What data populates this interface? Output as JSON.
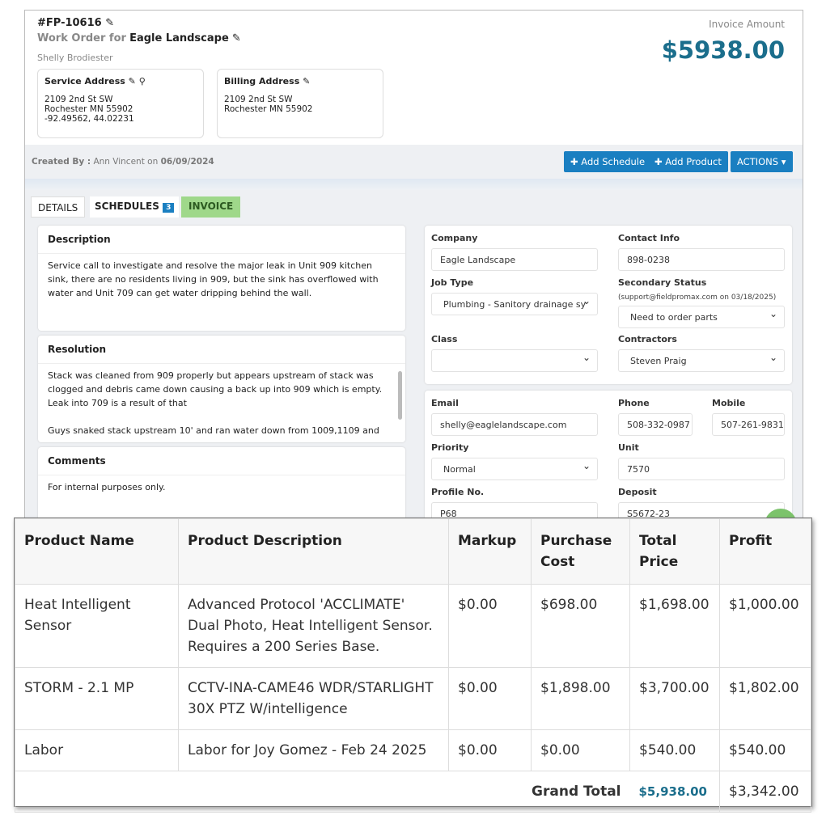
{
  "header": {
    "order_id": "#FP-10616",
    "title_prefix": "Work Order for",
    "customer": "Eagle Landscape",
    "contact": "Shelly Brodiester",
    "invoice_label": "Invoice Amount",
    "invoice_amount": "$5938.00"
  },
  "service_address": {
    "title": "Service Address",
    "line1": "2109 2nd St SW",
    "line2": "Rochester MN 55902",
    "coords": "-92.49562, 44.02231"
  },
  "billing_address": {
    "title": "Billing Address",
    "line1": "2109 2nd St SW",
    "line2": "Rochester MN 55902"
  },
  "created": {
    "label": "Created By :",
    "name": "Ann Vincent",
    "on": "on",
    "date": "06/09/2024"
  },
  "toolbar": {
    "add_schedule": "✚ Add Schedule",
    "add_product": "✚ Add Product",
    "actions": "ACTIONS ▾"
  },
  "tabs": [
    {
      "label": "DETAILS"
    },
    {
      "label": "SCHEDULES",
      "badge": "3"
    },
    {
      "label": "INVOICE"
    }
  ],
  "description": {
    "title": "Description",
    "text": "Service call to investigate and resolve the major leak in Unit 909 kitchen sink, there are no residents living in 909, but the sink has overflowed with water and Unit 709 can get water dripping behind the wall."
  },
  "resolution": {
    "title": "Resolution",
    "text1": "Stack was cleaned from 909 properly but appears upstream of stack was clogged and debris came down causing a back up into 909 which is empty. Leak into 709 is a result of that",
    "text2": "Guys snaked stack upstream 10' and ran water down from 1009,1109 and"
  },
  "comments": {
    "title": "Comments",
    "text": "For internal purposes only."
  },
  "form": {
    "company": {
      "label": "Company",
      "value": "Eagle Landscape"
    },
    "contact_info": {
      "label": "Contact Info",
      "value": "898-0238"
    },
    "job_type": {
      "label": "Job Type",
      "value": "Plumbing - Sanitory drainage sy"
    },
    "secondary_status": {
      "label": "Secondary Status",
      "note": "(support@fieldpromax.com on 03/18/2025)",
      "value": "Need to order parts"
    },
    "class": {
      "label": "Class",
      "value": ""
    },
    "contractors": {
      "label": "Contractors",
      "value": "Steven Praig"
    },
    "email": {
      "label": "Email",
      "value": "shelly@eaglelandscape.com"
    },
    "phone": {
      "label": "Phone",
      "value": "508-332-0987"
    },
    "mobile": {
      "label": "Mobile",
      "value": "507-261-9831"
    },
    "priority": {
      "label": "Priority",
      "value": "Normal"
    },
    "unit": {
      "label": "Unit",
      "value": "7570"
    },
    "profile_no": {
      "label": "Profile No.",
      "value": "P68"
    },
    "deposit": {
      "label": "Deposit",
      "value": "S5672-23"
    }
  },
  "products": {
    "headers": [
      "Product Name",
      "Product Description",
      "Markup",
      "Purchase Cost",
      "Total Price",
      "Profit"
    ],
    "rows": [
      [
        "Heat Intelligent Sensor",
        "Advanced Protocol 'ACCLIMATE' Dual Photo, Heat Intelligent Sensor. Requires a 200 Series Base.",
        "$0.00",
        "$698.00",
        "$1,698.00",
        "$1,000.00"
      ],
      [
        "STORM - 2.1 MP",
        "CCTV-INA-CAME46 WDR/STARLIGHT 30X PTZ W/intelligence",
        "$0.00",
        "$1,898.00",
        "$3,700.00",
        "$1,802.00"
      ],
      [
        "Labor",
        "Labor for Joy Gomez - Feb 24 2025",
        "$0.00",
        "$0.00",
        "$540.00",
        "$540.00"
      ]
    ],
    "grand_total_label": "Grand Total",
    "grand_total": "$5,938.00",
    "profit_total": "$3,342.00"
  },
  "colors": {
    "accent": "#1a7fc1",
    "amount": "#1b6e8c",
    "invoice_tab": "#9fd88a"
  }
}
